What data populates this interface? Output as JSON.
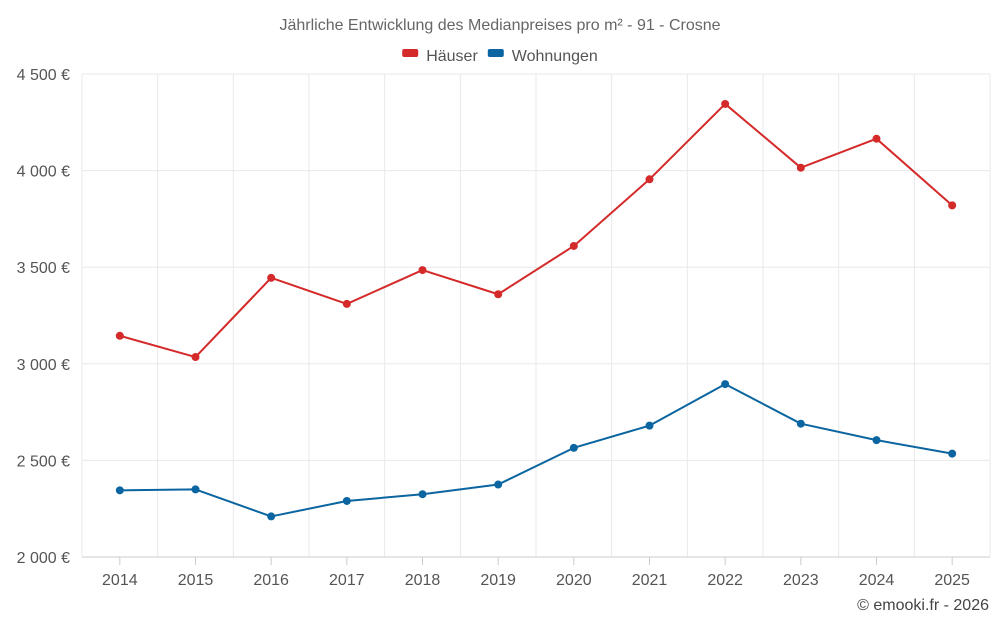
{
  "chart_data": {
    "type": "line",
    "title": "Jährliche Entwicklung des Medianpreises pro m² - 91 - Crosne",
    "categories": [
      "2014",
      "2015",
      "2016",
      "2017",
      "2018",
      "2019",
      "2020",
      "2021",
      "2022",
      "2023",
      "2024",
      "2025"
    ],
    "series": [
      {
        "name": "Häuser",
        "color": "#d42a2a",
        "values": [
          3145,
          3035,
          3445,
          3310,
          3485,
          3360,
          3610,
          3955,
          4345,
          4015,
          4165,
          3820
        ]
      },
      {
        "name": "Wohnungen",
        "color": "#0b65a0",
        "values": [
          2345,
          2350,
          2210,
          2290,
          2325,
          2375,
          2565,
          2680,
          2895,
          2690,
          2605,
          2535
        ]
      }
    ],
    "ylim": [
      2000,
      4500
    ],
    "yticks": [
      2000,
      2500,
      3000,
      3500,
      4000,
      4500
    ],
    "ytick_labels": [
      "2 000 €",
      "2 500 €",
      "3 000 €",
      "3 500 €",
      "4 000 €",
      "4 500 €"
    ],
    "grid": true,
    "legend": "top-center",
    "xlabel": "",
    "ylabel": ""
  },
  "credit": "© emooki.fr - 2026"
}
